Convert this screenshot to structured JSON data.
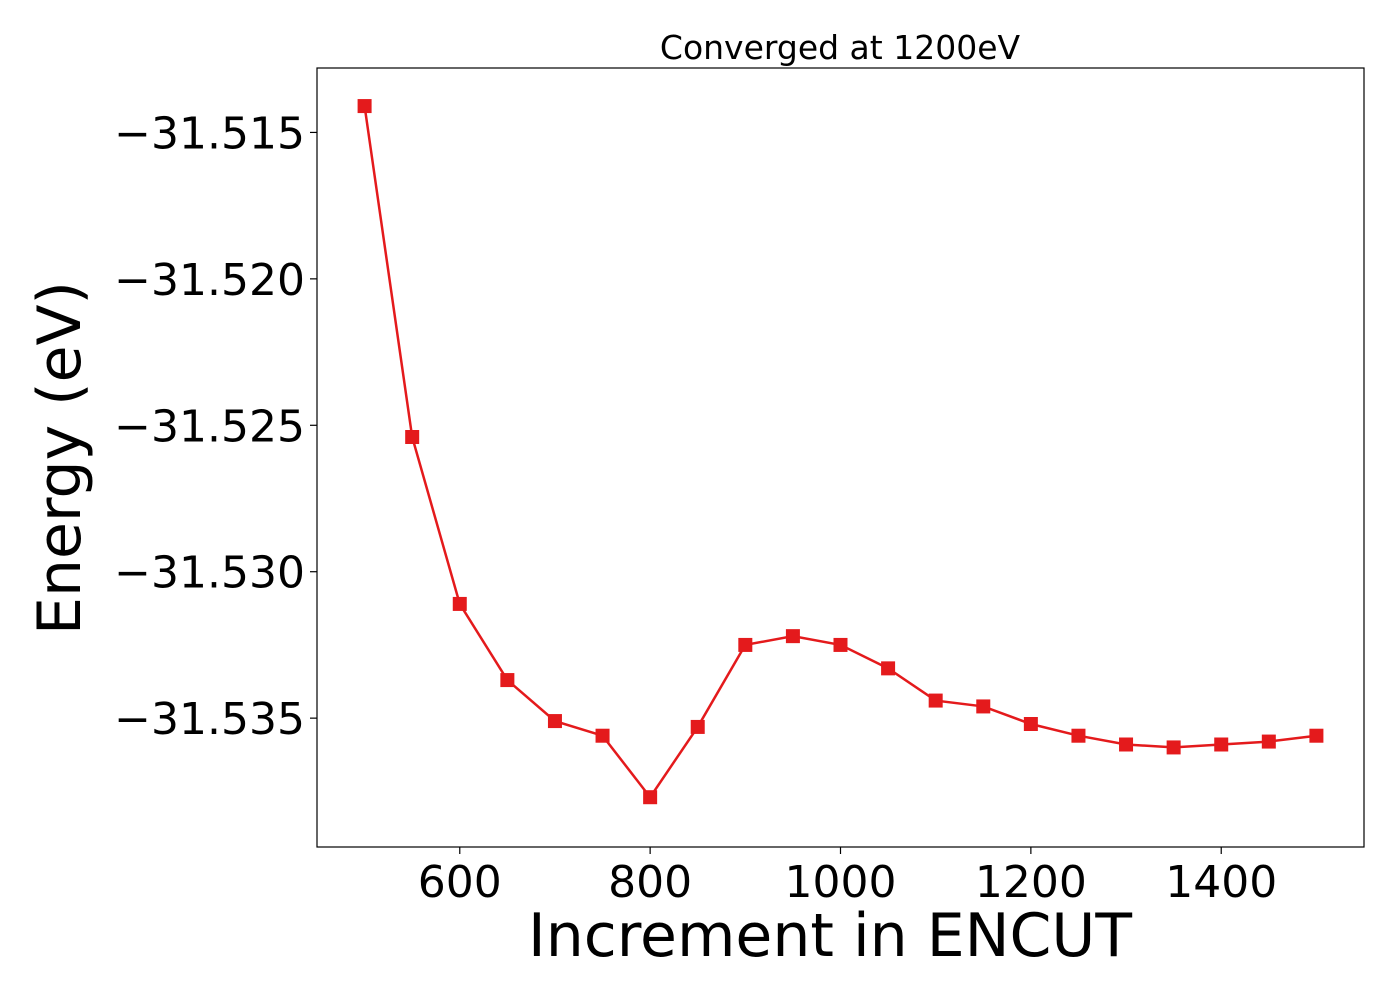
{
  "chart_data": {
    "type": "line",
    "title": "Converged at 1200eV",
    "xlabel": "Increment in ENCUT",
    "ylabel": "Energy (eV)",
    "xlim": [
      450,
      1550
    ],
    "ylim": [
      -31.5394,
      -31.5128
    ],
    "xticks": [
      600,
      800,
      1000,
      1200,
      1400
    ],
    "yticks": [
      -31.515,
      -31.52,
      -31.525,
      -31.53,
      -31.535
    ],
    "ytick_labels": [
      "−31.515",
      "−31.520",
      "−31.525",
      "−31.530",
      "−31.535"
    ],
    "grid": false,
    "marker": "square",
    "series": [
      {
        "color": "#e41a1c",
        "x": [
          500,
          550,
          600,
          650,
          700,
          750,
          800,
          850,
          900,
          950,
          1000,
          1050,
          1100,
          1150,
          1200,
          1250,
          1300,
          1350,
          1400,
          1450,
          1500
        ],
        "y": [
          -31.5141,
          -31.5254,
          -31.5311,
          -31.5337,
          -31.5351,
          -31.5356,
          -31.5377,
          -31.5353,
          -31.5325,
          -31.5322,
          -31.5325,
          -31.5333,
          -31.5344,
          -31.5346,
          -31.5352,
          -31.5356,
          -31.5359,
          -31.536,
          -31.5359,
          -31.5358,
          -31.5356
        ]
      }
    ]
  }
}
